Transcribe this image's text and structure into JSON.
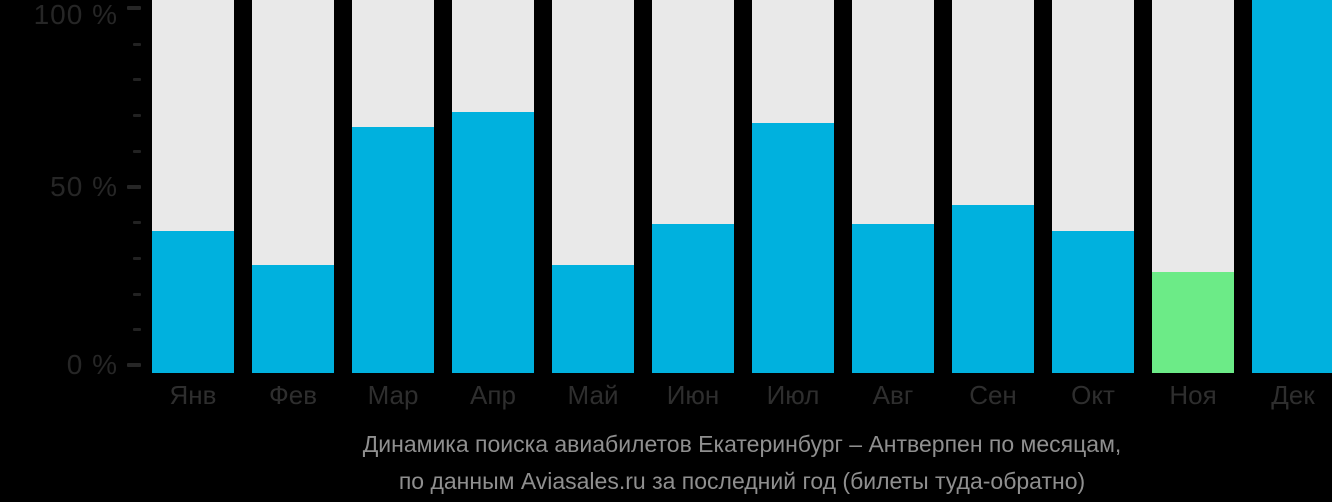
{
  "chart_data": {
    "type": "bar",
    "title": "Динамика поиска авиабилетов Екатеринбург – Антверпен по месяцам,",
    "subtitle": "по данным Aviasales.ru за последний год (билеты туда-обратно)",
    "categories": [
      "Янв",
      "Фев",
      "Мар",
      "Апр",
      "Май",
      "Июн",
      "Июл",
      "Авг",
      "Сен",
      "Окт",
      "Ноя",
      "Дек"
    ],
    "values": [
      38,
      29,
      66,
      70,
      29,
      40,
      67,
      40,
      45,
      38,
      27,
      100
    ],
    "unit": "%",
    "xlabel": "",
    "ylabel": "",
    "ylim": [
      0,
      100
    ],
    "y_axis": {
      "major_tick_labels": [
        "100 %",
        "50 %",
        "0 %"
      ],
      "major_tick_values": [
        100,
        50,
        0
      ],
      "minor_tick_step": 10,
      "grid": "off"
    },
    "legend": "none",
    "highlight": {
      "index": 10,
      "category": "Ноя"
    }
  },
  "colors": {
    "background": "#000000",
    "bar_track": "#E9E9E9",
    "bar_fill_default": "#00B1DE",
    "bar_fill_highlight": "#6CEB87",
    "y_axis_label_color": "#262626",
    "x_axis_label_color": "#2E2E2E",
    "caption_text_color": "#8F8F8F"
  }
}
